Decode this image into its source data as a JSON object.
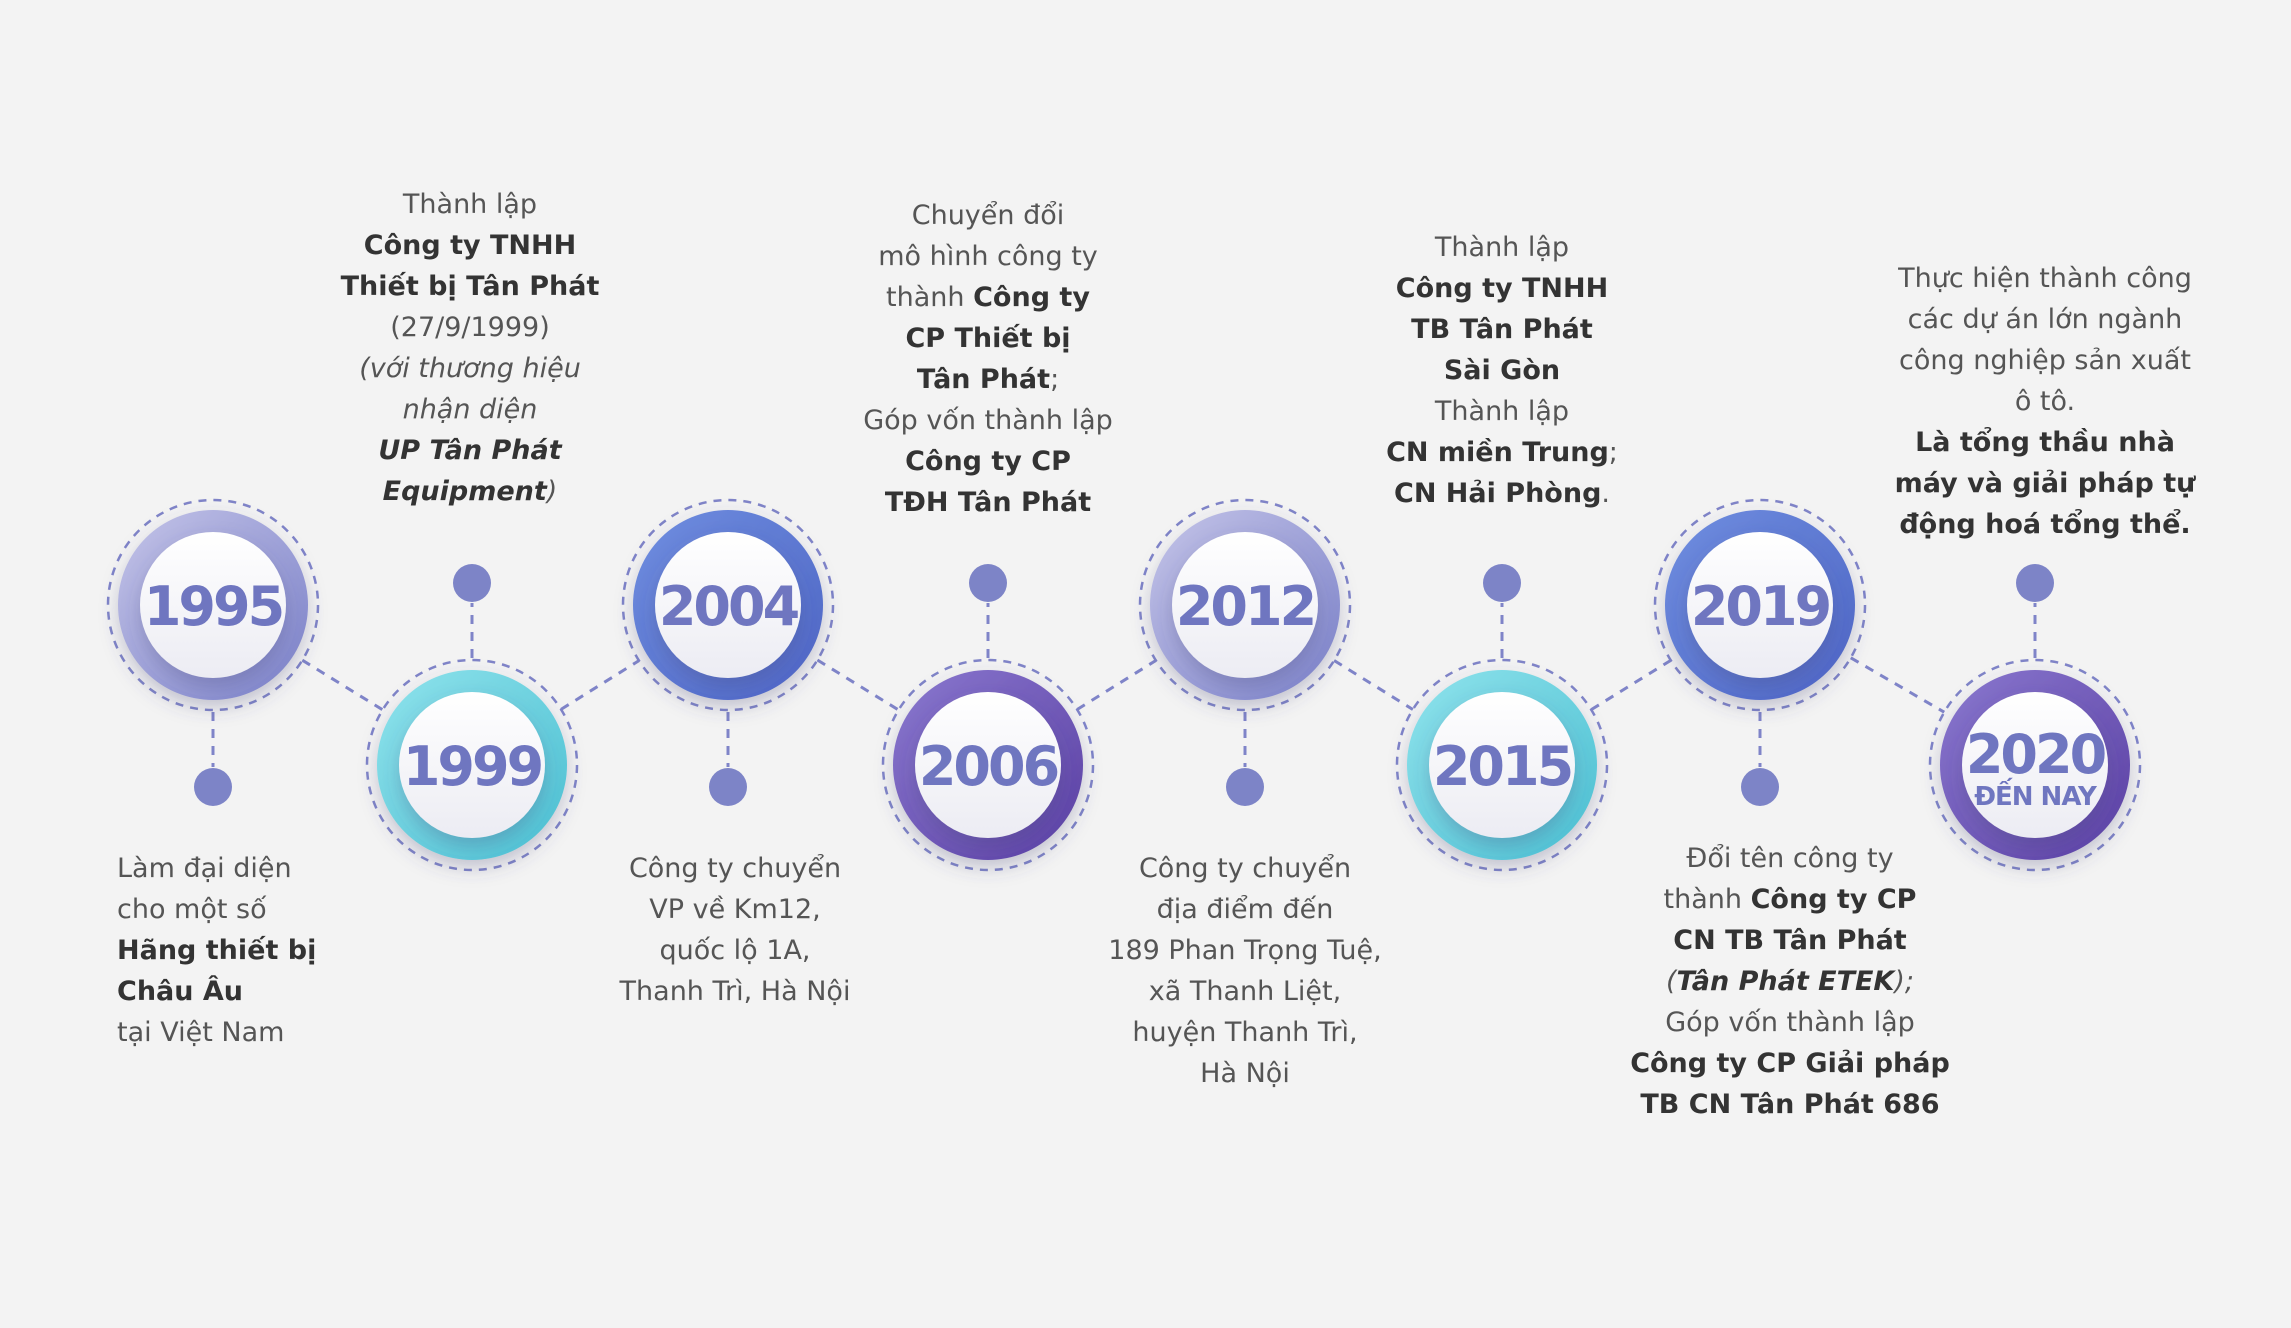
{
  "colors": {
    "background": "#f3f3f3",
    "connector": "#7f84c8",
    "dot": "#7d84c7",
    "year_text": "#6f76c0",
    "desc_text": "#555555"
  },
  "milestones": [
    {
      "year": "1995",
      "subtitle": "",
      "ring": [
        "#c4c4e8",
        "#7a80c8"
      ],
      "desc": [
        [
          {
            "t": "Làm đại diện",
            "s": "n"
          }
        ],
        [
          {
            "t": "cho một số",
            "s": "n"
          }
        ],
        [
          {
            "t": "Hãng thiết bị",
            "s": "b"
          }
        ],
        [
          {
            "t": "Châu Âu",
            "s": "b"
          }
        ],
        [
          {
            "t": "tại Việt Nam",
            "s": "n"
          }
        ]
      ]
    },
    {
      "year": "1999",
      "subtitle": "",
      "ring": [
        "#8fe3ec",
        "#4bbfd2"
      ],
      "desc": [
        [
          {
            "t": "Thành lập",
            "s": "n"
          }
        ],
        [
          {
            "t": "Công ty TNHH",
            "s": "b"
          }
        ],
        [
          {
            "t": "Thiết bị Tân Phát",
            "s": "b"
          }
        ],
        [
          {
            "t": "(27/9/1999)",
            "s": "n"
          }
        ],
        [
          {
            "t": "(với thương hiệu",
            "s": "i"
          }
        ],
        [
          {
            "t": "nhận diện",
            "s": "i"
          }
        ],
        [
          {
            "t": "UP Tân Phát",
            "s": "bi"
          }
        ],
        [
          {
            "t": "Equipment",
            "s": "bi"
          },
          {
            "t": ")",
            "s": "i"
          }
        ]
      ]
    },
    {
      "year": "2004",
      "subtitle": "",
      "ring": [
        "#6f8ee0",
        "#4d64c4"
      ],
      "desc": [
        [
          {
            "t": "Công ty chuyển",
            "s": "n"
          }
        ],
        [
          {
            "t": "VP về Km12,",
            "s": "n"
          }
        ],
        [
          {
            "t": "quốc lộ 1A,",
            "s": "n"
          }
        ],
        [
          {
            "t": "Thanh Trì, Hà Nội",
            "s": "n"
          }
        ]
      ]
    },
    {
      "year": "2006",
      "subtitle": "",
      "ring": [
        "#8a78cf",
        "#5a3fa3"
      ],
      "desc": [
        [
          {
            "t": "Chuyển đổi",
            "s": "n"
          }
        ],
        [
          {
            "t": "mô hình công ty",
            "s": "n"
          }
        ],
        [
          {
            "t": "thành ",
            "s": "n"
          },
          {
            "t": "Công ty",
            "s": "b"
          }
        ],
        [
          {
            "t": "CP Thiết bị",
            "s": "b"
          }
        ],
        [
          {
            "t": "Tân Phát",
            "s": "b"
          },
          {
            "t": ";",
            "s": "n"
          }
        ],
        [
          {
            "t": "Góp vốn thành lập",
            "s": "n"
          }
        ],
        [
          {
            "t": "Công ty CP",
            "s": "b"
          }
        ],
        [
          {
            "t": "TĐH Tân Phát",
            "s": "b"
          }
        ]
      ]
    },
    {
      "year": "2012",
      "subtitle": "",
      "ring": [
        "#c4c4e8",
        "#7a80c8"
      ],
      "desc": [
        [
          {
            "t": "Công ty chuyển",
            "s": "n"
          }
        ],
        [
          {
            "t": "địa điểm đến",
            "s": "n"
          }
        ],
        [
          {
            "t": "189 Phan Trọng Tuệ,",
            "s": "n"
          }
        ],
        [
          {
            "t": "xã Thanh Liệt,",
            "s": "n"
          }
        ],
        [
          {
            "t": "huyện Thanh Trì,",
            "s": "n"
          }
        ],
        [
          {
            "t": "Hà Nội",
            "s": "n"
          }
        ]
      ]
    },
    {
      "year": "2015",
      "subtitle": "",
      "ring": [
        "#8fe3ec",
        "#4bbfd2"
      ],
      "desc": [
        [
          {
            "t": "Thành lập",
            "s": "n"
          }
        ],
        [
          {
            "t": "Công ty TNHH",
            "s": "b"
          }
        ],
        [
          {
            "t": "TB Tân Phát",
            "s": "b"
          }
        ],
        [
          {
            "t": "Sài Gòn",
            "s": "b"
          }
        ],
        [
          {
            "t": "Thành lập",
            "s": "n"
          }
        ],
        [
          {
            "t": "CN miền Trung",
            "s": "b"
          },
          {
            "t": ";",
            "s": "n"
          }
        ],
        [
          {
            "t": "CN Hải Phòng",
            "s": "b"
          },
          {
            "t": ".",
            "s": "n"
          }
        ]
      ]
    },
    {
      "year": "2019",
      "subtitle": "",
      "ring": [
        "#6f8ee0",
        "#4d64c4"
      ],
      "desc": [
        [
          {
            "t": "Đổi tên công ty",
            "s": "n"
          }
        ],
        [
          {
            "t": "thành ",
            "s": "n"
          },
          {
            "t": "Công ty CP",
            "s": "b"
          }
        ],
        [
          {
            "t": "CN TB Tân Phát",
            "s": "b"
          }
        ],
        [
          {
            "t": "(",
            "s": "i"
          },
          {
            "t": "Tân Phát ETEK",
            "s": "bi"
          },
          {
            "t": ");",
            "s": "i"
          }
        ],
        [
          {
            "t": "Góp vốn thành lập",
            "s": "n"
          }
        ],
        [
          {
            "t": "Công ty CP Giải pháp",
            "s": "b"
          }
        ],
        [
          {
            "t": "TB CN Tân Phát 686",
            "s": "b"
          }
        ]
      ]
    },
    {
      "year": "2020",
      "subtitle": "ĐẾN NAY",
      "ring": [
        "#8a78cf",
        "#5a3fa3"
      ],
      "desc": [
        [
          {
            "t": "Thực hiện thành công",
            "s": "n"
          }
        ],
        [
          {
            "t": "các dự án lớn ngành",
            "s": "n"
          }
        ],
        [
          {
            "t": "công nghiệp sản xuất",
            "s": "n"
          }
        ],
        [
          {
            "t": "ô tô.",
            "s": "n"
          }
        ],
        [
          {
            "t": "Là tổng thầu nhà",
            "s": "b"
          }
        ],
        [
          {
            "t": "máy và giải pháp tự",
            "s": "b"
          }
        ],
        [
          {
            "t": "động hoá tổng thể.",
            "s": "b"
          }
        ]
      ]
    }
  ]
}
